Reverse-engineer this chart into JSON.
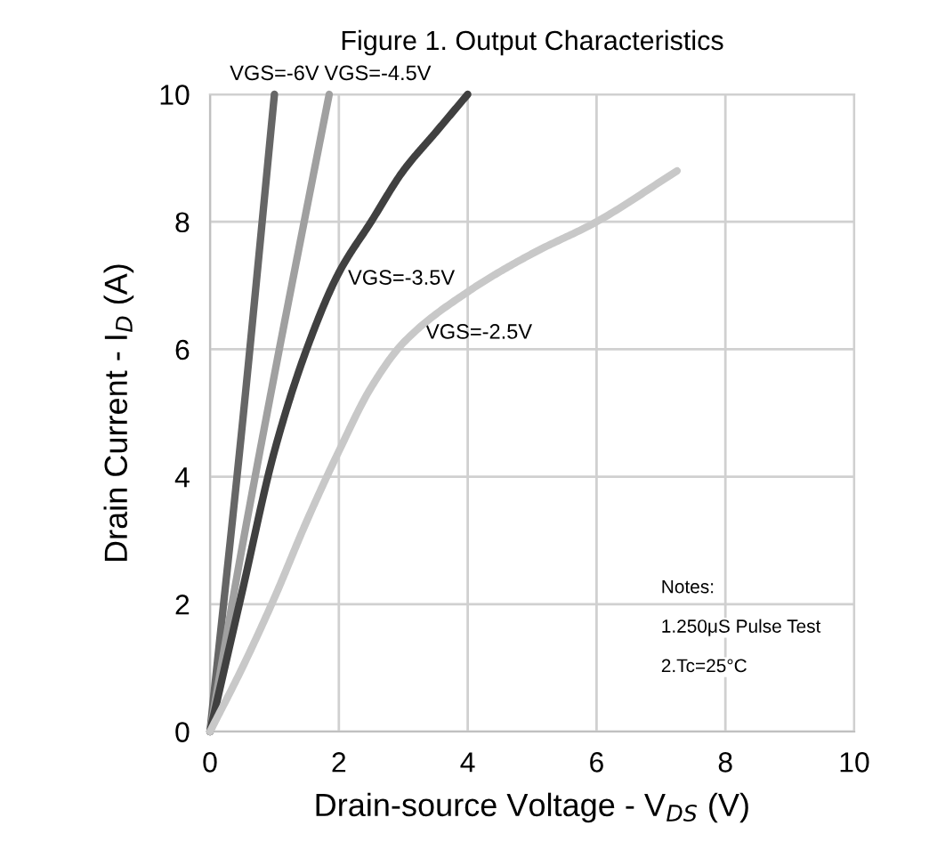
{
  "chart_data": {
    "type": "line",
    "title": "Figure 1. Output Characteristics",
    "xlabel": "Drain-source Voltage - V$_{DS}$ (V)",
    "ylabel": "Drain Current - I$_{D}$ (A)",
    "xlim": [
      0,
      10
    ],
    "ylim": [
      0,
      10
    ],
    "xticks": [
      0,
      2,
      4,
      6,
      8,
      10
    ],
    "yticks": [
      0,
      2,
      4,
      6,
      8,
      10
    ],
    "grid": true,
    "legend": false,
    "marker": "none",
    "line_style": "solid",
    "series": [
      {
        "name": "VGS=-6V",
        "color": "#666666",
        "x": [
          0,
          0.5,
          1.0
        ],
        "values": [
          0,
          4.8,
          10
        ]
      },
      {
        "name": "VGS=-4.5V",
        "color": "#a0a0a0",
        "x": [
          0,
          0.5,
          1.0,
          1.5,
          1.85
        ],
        "values": [
          0,
          2.9,
          5.6,
          8.2,
          10
        ]
      },
      {
        "name": "VGS=-3.5V",
        "color": "#404040",
        "x": [
          0,
          0.5,
          1.0,
          1.5,
          2.0,
          2.5,
          3.0,
          3.5,
          4.0
        ],
        "values": [
          0,
          2.2,
          4.4,
          6.0,
          7.2,
          8.0,
          8.8,
          9.4,
          10
        ]
      },
      {
        "name": "VGS=-2.5V",
        "color": "#c8c8c8",
        "x": [
          0,
          0.5,
          1.0,
          1.5,
          2.0,
          2.5,
          3.0,
          4.0,
          5.0,
          6.0,
          7.25
        ],
        "values": [
          0,
          1.0,
          2.1,
          3.3,
          4.4,
          5.4,
          6.1,
          6.9,
          7.5,
          8.0,
          8.8
        ]
      }
    ],
    "annotations": [
      "Notes:",
      "1.250μS Pulse Test",
      "2.Tc=25°C"
    ]
  }
}
